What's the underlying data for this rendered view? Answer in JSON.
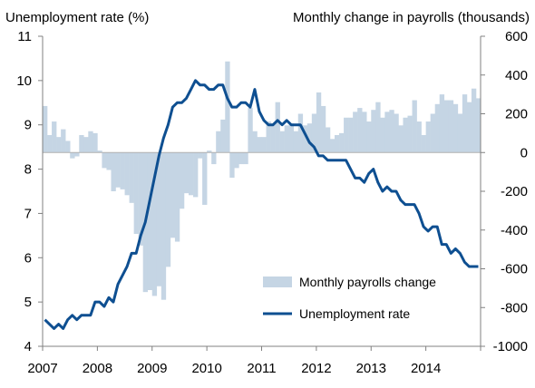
{
  "chart_data": {
    "type": "bar+line",
    "left_axis_title": "Unemployment rate (%)",
    "right_axis_title": "Monthly change in payrolls (thousands)",
    "x_ticks": [
      "2007",
      "2008",
      "2009",
      "2010",
      "2011",
      "2012",
      "2013",
      "2014"
    ],
    "left_ticks": [
      "11",
      "10",
      "9",
      "8",
      "7",
      "6",
      "5",
      "4"
    ],
    "right_ticks": [
      "600",
      "400",
      "200",
      "0",
      "-200",
      "-400",
      "-600",
      "-800",
      "-1000"
    ],
    "ylim_left": [
      4,
      11
    ],
    "ylim_right": [
      -1000,
      600
    ],
    "colors": {
      "bars": "#c5d5e4",
      "line": "#0e4f91",
      "axis": "#808080"
    },
    "legend": {
      "position": "lower right",
      "bars_label": "Monthly payrolls change",
      "line_label": "Unemployment rate"
    },
    "series": [
      {
        "name": "Monthly payrolls change",
        "type": "bar",
        "axis": "right",
        "start": "2007-01",
        "values": [
          240,
          90,
          160,
          80,
          120,
          60,
          -30,
          -20,
          90,
          80,
          110,
          100,
          10,
          -80,
          -90,
          -200,
          -180,
          -190,
          -220,
          -260,
          -420,
          -480,
          -720,
          -710,
          -740,
          -690,
          -760,
          -590,
          -440,
          -460,
          -290,
          -210,
          -220,
          -230,
          -30,
          -270,
          10,
          -60,
          110,
          170,
          470,
          -130,
          -80,
          -60,
          -60,
          230,
          110,
          80,
          80,
          160,
          150,
          260,
          110,
          140,
          150,
          110,
          200,
          140,
          150,
          200,
          310,
          240,
          130,
          70,
          90,
          100,
          180,
          180,
          210,
          230,
          210,
          160,
          220,
          260,
          180,
          210,
          220,
          200,
          140,
          180,
          190,
          270,
          160,
          90,
          160,
          200,
          250,
          300,
          270,
          270,
          250,
          200,
          300,
          260,
          330,
          280
        ]
      },
      {
        "name": "Unemployment rate",
        "type": "line",
        "axis": "left",
        "start": "2007-01",
        "values": [
          4.6,
          4.5,
          4.4,
          4.5,
          4.4,
          4.6,
          4.7,
          4.6,
          4.7,
          4.7,
          4.7,
          5.0,
          5.0,
          4.9,
          5.1,
          5.0,
          5.4,
          5.6,
          5.8,
          6.1,
          6.1,
          6.5,
          6.8,
          7.3,
          7.8,
          8.3,
          8.7,
          9.0,
          9.4,
          9.5,
          9.5,
          9.6,
          9.8,
          10.0,
          9.9,
          9.9,
          9.8,
          9.8,
          9.9,
          9.9,
          9.6,
          9.4,
          9.4,
          9.5,
          9.5,
          9.4,
          9.8,
          9.3,
          9.1,
          9.0,
          9.0,
          9.1,
          9.0,
          9.1,
          9.0,
          9.0,
          9.0,
          8.8,
          8.6,
          8.5,
          8.3,
          8.3,
          8.2,
          8.2,
          8.2,
          8.2,
          8.2,
          8.0,
          7.8,
          7.8,
          7.7,
          7.9,
          8.0,
          7.7,
          7.5,
          7.6,
          7.5,
          7.5,
          7.3,
          7.2,
          7.2,
          7.2,
          7.0,
          6.7,
          6.6,
          6.7,
          6.7,
          6.3,
          6.3,
          6.1,
          6.2,
          6.1,
          5.9,
          5.8,
          5.8,
          5.8
        ]
      }
    ]
  }
}
